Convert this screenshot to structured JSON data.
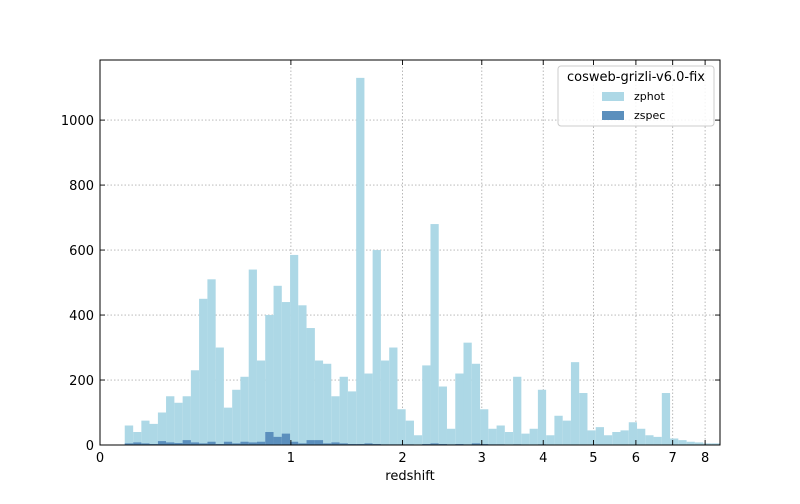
{
  "chart_data": {
    "type": "histogram",
    "xlabel": "redshift",
    "legend_title": "cosweb-grizli-v6.0-fix",
    "legend": "upper right",
    "xscale": "log1p",
    "grid": true,
    "bins": [
      0.094,
      0.128,
      0.162,
      0.197,
      0.234,
      0.271,
      0.31,
      0.35,
      0.391,
      0.433,
      0.477,
      0.522,
      0.568,
      0.616,
      0.665,
      0.716,
      0.768,
      0.822,
      0.878,
      0.935,
      0.994,
      1.054,
      1.117,
      1.182,
      1.248,
      1.316,
      1.387,
      1.46,
      1.535,
      1.612,
      1.691,
      1.773,
      1.858,
      1.945,
      2.034,
      2.127,
      2.222,
      2.32,
      2.421,
      2.525,
      2.633,
      2.743,
      2.857,
      2.975,
      3.096,
      3.221,
      3.349,
      3.482,
      3.618,
      3.759,
      3.904,
      4.053,
      4.207,
      4.366,
      4.529,
      4.697,
      4.871,
      5.05,
      5.234,
      5.424,
      5.619,
      5.821,
      6.029,
      6.243,
      6.463,
      6.691,
      6.925,
      7.166,
      7.415,
      7.671,
      7.935,
      8.207,
      8.488
    ],
    "series": [
      {
        "name": "zphot",
        "color": "#add8e6",
        "values": [
          60,
          40,
          75,
          65,
          100,
          150,
          130,
          150,
          230,
          450,
          510,
          300,
          115,
          170,
          210,
          540,
          260,
          400,
          490,
          440,
          585,
          430,
          360,
          260,
          250,
          150,
          210,
          165,
          1130,
          220,
          600,
          260,
          300,
          110,
          75,
          30,
          245,
          680,
          180,
          50,
          220,
          315,
          250,
          110,
          50,
          60,
          40,
          210,
          35,
          50,
          170,
          30,
          90,
          75,
          255,
          160,
          45,
          55,
          30,
          40,
          45,
          70,
          50,
          30,
          25,
          160,
          20,
          15,
          10,
          8,
          5,
          5
        ]
      },
      {
        "name": "zspec",
        "color": "#5b8fbd",
        "values": [
          5,
          8,
          5,
          3,
          12,
          8,
          6,
          15,
          8,
          5,
          10,
          3,
          10,
          5,
          10,
          8,
          10,
          40,
          25,
          35,
          10,
          5,
          15,
          15,
          5,
          8,
          5,
          3,
          3,
          5,
          3,
          2,
          2,
          2,
          2,
          1,
          3,
          5,
          3,
          2,
          3,
          2,
          5,
          3,
          2,
          2,
          1,
          2,
          1,
          1,
          2,
          1,
          1,
          1,
          1,
          1,
          1,
          1,
          1,
          1,
          1,
          1,
          1,
          1,
          1,
          1,
          0,
          0,
          0,
          0,
          0,
          0
        ]
      }
    ],
    "xlim": [
      0,
      8.5
    ],
    "xticks": [
      0,
      1,
      2,
      3,
      4,
      5,
      6,
      7,
      8
    ],
    "ylim": [
      0,
      1185
    ],
    "yticks": [
      0,
      200,
      400,
      600,
      800,
      1000
    ]
  }
}
